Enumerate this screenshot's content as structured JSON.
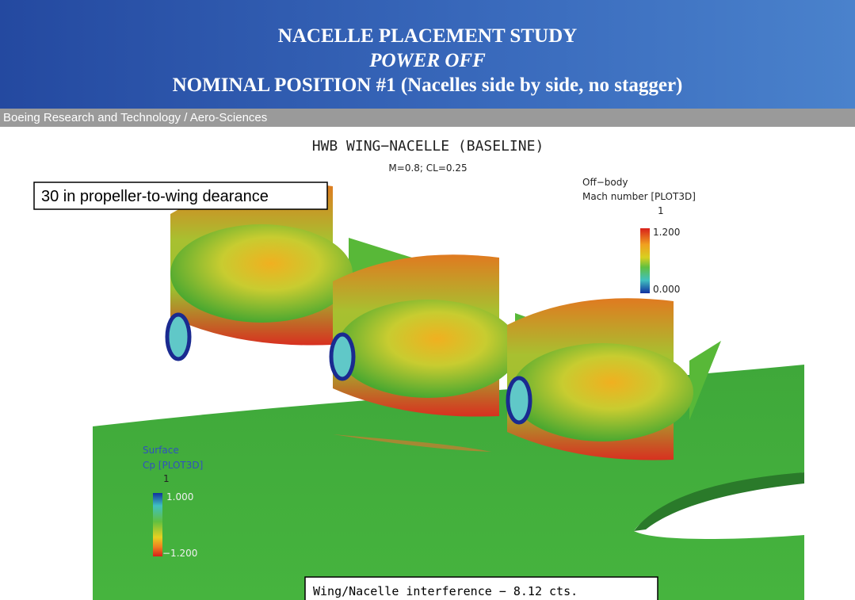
{
  "header": {
    "title": "NACELLE PLACEMENT STUDY",
    "subtitle": "POWER OFF",
    "position": "NOMINAL POSITION #1 (Nacelles side by side, no stagger)"
  },
  "banner": "Boeing Research and Technology / Aero-Sciences",
  "figure": {
    "title": "HWB WING−NACELLE (BASELINE)",
    "conditions": "M=0.8; CL=0.25",
    "annotation": "30 in propeller-to-wing dearance",
    "mach_legend": {
      "title": "Off−body",
      "variable": "Mach number [PLOT3D]",
      "unit": "1",
      "max": "1.200",
      "min": "0.000"
    },
    "cp_legend": {
      "title": "Surface",
      "variable": "Cp [PLOT3D]",
      "unit": "1",
      "max": "1.000",
      "min": "−1.200"
    },
    "result": "Wing/Nacelle interference − 8.12 cts."
  }
}
